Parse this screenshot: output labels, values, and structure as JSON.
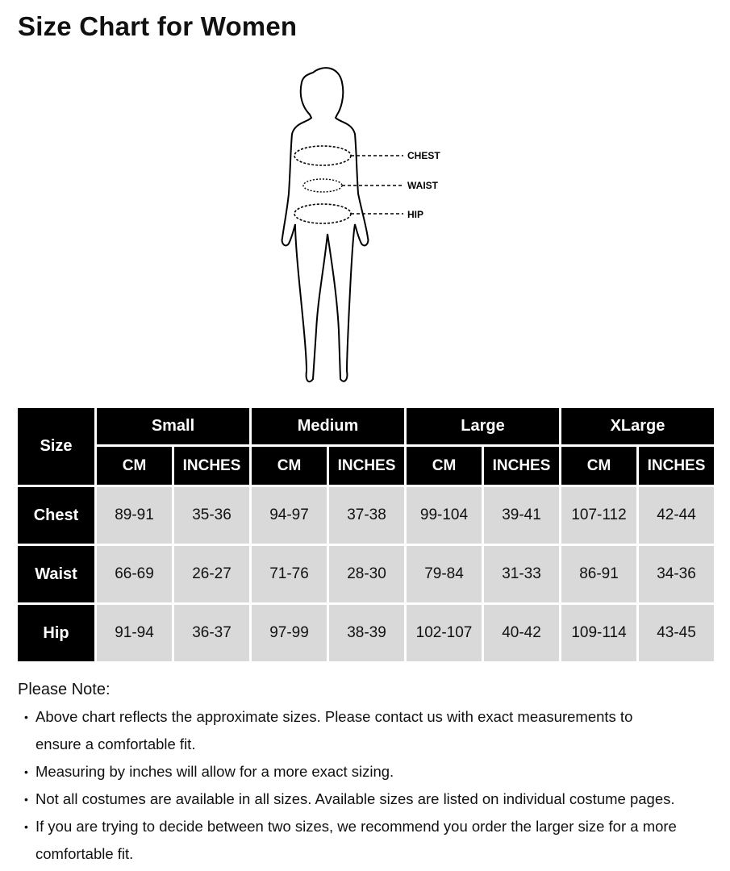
{
  "title": "Size Chart for Women",
  "figure": {
    "labels": {
      "chest": "CHEST",
      "waist": "WAIST",
      "hip": "HIP"
    }
  },
  "table": {
    "corner": "Size",
    "sizes": [
      "Small",
      "Medium",
      "Large",
      "XLarge"
    ],
    "units": [
      "CM",
      "INCHES"
    ],
    "rows": [
      {
        "label": "Chest",
        "values": [
          "89-91",
          "35-36",
          "94-97",
          "37-38",
          "99-104",
          "39-41",
          "107-112",
          "42-44"
        ]
      },
      {
        "label": "Waist",
        "values": [
          "66-69",
          "26-27",
          "71-76",
          "28-30",
          "79-84",
          "31-33",
          "86-91",
          "34-36"
        ]
      },
      {
        "label": "Hip",
        "values": [
          "91-94",
          "36-37",
          "97-99",
          "38-39",
          "102-107",
          "40-42",
          "109-114",
          "43-45"
        ]
      }
    ],
    "colors": {
      "header_bg": "#000000",
      "cell_bg": "#d9d9d9"
    }
  },
  "notes": {
    "title": "Please Note:",
    "items": [
      "Above chart reflects the approximate sizes. Please contact us with exact measurements to ensure a comfortable fit.",
      "Measuring by inches will allow for a more exact sizing.",
      "Not all costumes are available in all sizes. Available sizes are listed on individual costume pages.",
      "If you are trying to decide between two sizes, we recommend you order the larger size for a more comfortable fit."
    ]
  }
}
